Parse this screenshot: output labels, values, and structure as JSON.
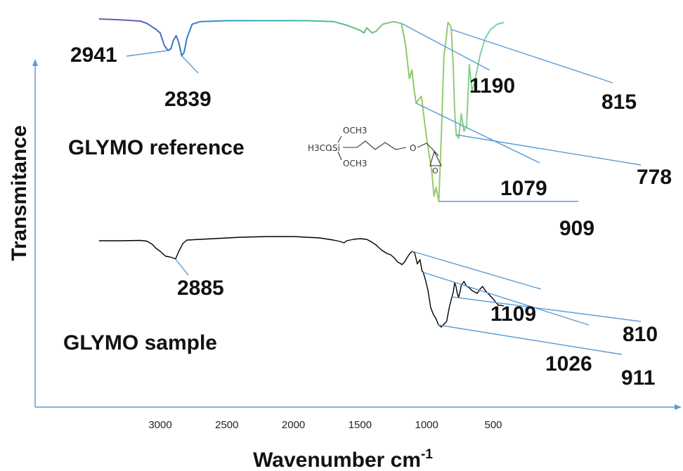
{
  "chart_data": {
    "type": "line",
    "title": "",
    "xlabel": "Wavenumber cm",
    "xlabel_superscript": "-1",
    "ylabel": "Transmitance",
    "x_reversed": true,
    "xlim": [
      3470,
      390
    ],
    "x_ticks": [
      "3000",
      "2500",
      "2000",
      "1500",
      "1000",
      "500"
    ],
    "series": [
      {
        "name": "GLYMO reference",
        "style": "rainbow",
        "points": [
          [
            3460,
            4.0
          ],
          [
            3300,
            4.5
          ],
          [
            3150,
            5.2
          ],
          [
            3100,
            6.5
          ],
          [
            3060,
            8.5
          ],
          [
            3030,
            10.0
          ],
          [
            3000,
            12.0
          ],
          [
            2970,
            19.0
          ],
          [
            2941,
            22.0
          ],
          [
            2920,
            21.0
          ],
          [
            2900,
            16.0
          ],
          [
            2880,
            13.5
          ],
          [
            2860,
            17.5
          ],
          [
            2839,
            25.0
          ],
          [
            2820,
            23.0
          ],
          [
            2800,
            15.0
          ],
          [
            2760,
            7.0
          ],
          [
            2700,
            5.5
          ],
          [
            2500,
            5.0
          ],
          [
            2200,
            5.0
          ],
          [
            1900,
            5.0
          ],
          [
            1700,
            5.5
          ],
          [
            1600,
            7.5
          ],
          [
            1500,
            10.5
          ],
          [
            1470,
            12.0
          ],
          [
            1450,
            9.0
          ],
          [
            1410,
            12.0
          ],
          [
            1380,
            11.0
          ],
          [
            1330,
            7.0
          ],
          [
            1250,
            5.5
          ],
          [
            1190,
            6.5
          ],
          [
            1160,
            18.0
          ],
          [
            1130,
            38.0
          ],
          [
            1110,
            33.0
          ],
          [
            1095,
            44.0
          ],
          [
            1079,
            52.0
          ],
          [
            1060,
            50.0
          ],
          [
            1040,
            48.0
          ],
          [
            1000,
            72.0
          ],
          [
            960,
            92.0
          ],
          [
            945,
            105.0
          ],
          [
            930,
            100.0
          ],
          [
            909,
            108.0
          ],
          [
            890,
            70.0
          ],
          [
            870,
            25.0
          ],
          [
            855,
            16.0
          ],
          [
            840,
            6.0
          ],
          [
            820,
            8.0
          ],
          [
            815,
            10.0
          ],
          [
            800,
            32.0
          ],
          [
            790,
            56.0
          ],
          [
            778,
            70.0
          ],
          [
            760,
            72.0
          ],
          [
            740,
            58.0
          ],
          [
            720,
            68.0
          ],
          [
            700,
            65.0
          ],
          [
            680,
            30.0
          ],
          [
            660,
            45.0
          ],
          [
            640,
            40.0
          ],
          [
            600,
            25.0
          ],
          [
            560,
            15.0
          ],
          [
            520,
            10.0
          ],
          [
            470,
            7.0
          ],
          [
            420,
            6.0
          ]
        ]
      },
      {
        "name": "GLYMO sample",
        "style": "black",
        "points": [
          [
            3460,
            5.0
          ],
          [
            3300,
            5.0
          ],
          [
            3150,
            4.5
          ],
          [
            3100,
            5.5
          ],
          [
            3060,
            10.0
          ],
          [
            3030,
            16.0
          ],
          [
            3000,
            20.0
          ],
          [
            2960,
            27.0
          ],
          [
            2930,
            28.0
          ],
          [
            2910,
            29.0
          ],
          [
            2885,
            31.0
          ],
          [
            2860,
            20.0
          ],
          [
            2830,
            9.0
          ],
          [
            2800,
            4.0
          ],
          [
            2700,
            3.0
          ],
          [
            2600,
            2.0
          ],
          [
            2500,
            1.0
          ],
          [
            2400,
            0.0
          ],
          [
            2200,
            -1.0
          ],
          [
            2000,
            -1.0
          ],
          [
            1800,
            1.0
          ],
          [
            1700,
            4.0
          ],
          [
            1650,
            6.0
          ],
          [
            1620,
            8.0
          ],
          [
            1600,
            5.0
          ],
          [
            1550,
            3.0
          ],
          [
            1500,
            2.0
          ],
          [
            1450,
            3.0
          ],
          [
            1420,
            6.0
          ],
          [
            1380,
            11.0
          ],
          [
            1340,
            18.0
          ],
          [
            1300,
            23.0
          ],
          [
            1270,
            25.0
          ],
          [
            1240,
            30.0
          ],
          [
            1220,
            35.0
          ],
          [
            1200,
            37.0
          ],
          [
            1185,
            39.0
          ],
          [
            1165,
            35.0
          ],
          [
            1150,
            30.0
          ],
          [
            1130,
            24.0
          ],
          [
            1109,
            20.0
          ],
          [
            1090,
            22.0
          ],
          [
            1070,
            38.0
          ],
          [
            1050,
            32.0
          ],
          [
            1035,
            48.0
          ],
          [
            1026,
            50.0
          ],
          [
            1010,
            60.0
          ],
          [
            990,
            76.0
          ],
          [
            970,
            100.0
          ],
          [
            950,
            110.0
          ],
          [
            930,
            116.0
          ],
          [
            911,
            125.0
          ],
          [
            890,
            128.0
          ],
          [
            870,
            124.0
          ],
          [
            850,
            120.0
          ],
          [
            830,
            100.0
          ],
          [
            810,
            85.0
          ],
          [
            800,
            78.0
          ],
          [
            790,
            65.0
          ],
          [
            780,
            70.0
          ],
          [
            770,
            80.0
          ],
          [
            760,
            86.0
          ],
          [
            750,
            78.0
          ],
          [
            740,
            68.0
          ],
          [
            720,
            63.0
          ],
          [
            700,
            70.0
          ],
          [
            680,
            72.0
          ],
          [
            660,
            76.0
          ],
          [
            640,
            78.0
          ],
          [
            620,
            80.0
          ],
          [
            600,
            74.0
          ],
          [
            580,
            70.0
          ],
          [
            560,
            76.0
          ],
          [
            540,
            80.0
          ],
          [
            520,
            84.0
          ],
          [
            500,
            88.0
          ],
          [
            480,
            93.0
          ],
          [
            460,
            97.0
          ],
          [
            440,
            97.0
          ],
          [
            420,
            98.0
          ]
        ]
      }
    ],
    "series_labels": [
      "GLYMO reference",
      "GLYMO sample"
    ],
    "structure_formula": {
      "left": "H3CO",
      "center": "Si",
      "top": "OCH3",
      "bottom": "OCH3",
      "ether": "O"
    },
    "annotations": [
      {
        "text": "2941",
        "series": 0,
        "x": 2941
      },
      {
        "text": "2839",
        "series": 0,
        "x": 2839
      },
      {
        "text": "1190",
        "series": 0,
        "x": 1190
      },
      {
        "text": "1079",
        "series": 0,
        "x": 1079
      },
      {
        "text": "909",
        "series": 0,
        "x": 909
      },
      {
        "text": "815",
        "series": 0,
        "x": 815
      },
      {
        "text": "778",
        "series": 0,
        "x": 778
      },
      {
        "text": "2885",
        "series": 1,
        "x": 2885
      },
      {
        "text": "1109",
        "series": 1,
        "x": 1109
      },
      {
        "text": "1026",
        "series": 1,
        "x": 1026
      },
      {
        "text": "911",
        "series": 1,
        "x": 911
      },
      {
        "text": "810",
        "series": 1,
        "x": 810
      }
    ],
    "colors": {
      "axis": "#5b9bd5",
      "leader": "#5b9bd5",
      "sample_line": "#000000",
      "rainbow": [
        "#b03c9c",
        "#7a4fb8",
        "#3f6fc2",
        "#2aa1c9",
        "#39b8a6",
        "#64c27a",
        "#9acb5f",
        "#7fd0a8",
        "#45a9d6",
        "#5a61c2",
        "#9d3fa6"
      ]
    }
  }
}
